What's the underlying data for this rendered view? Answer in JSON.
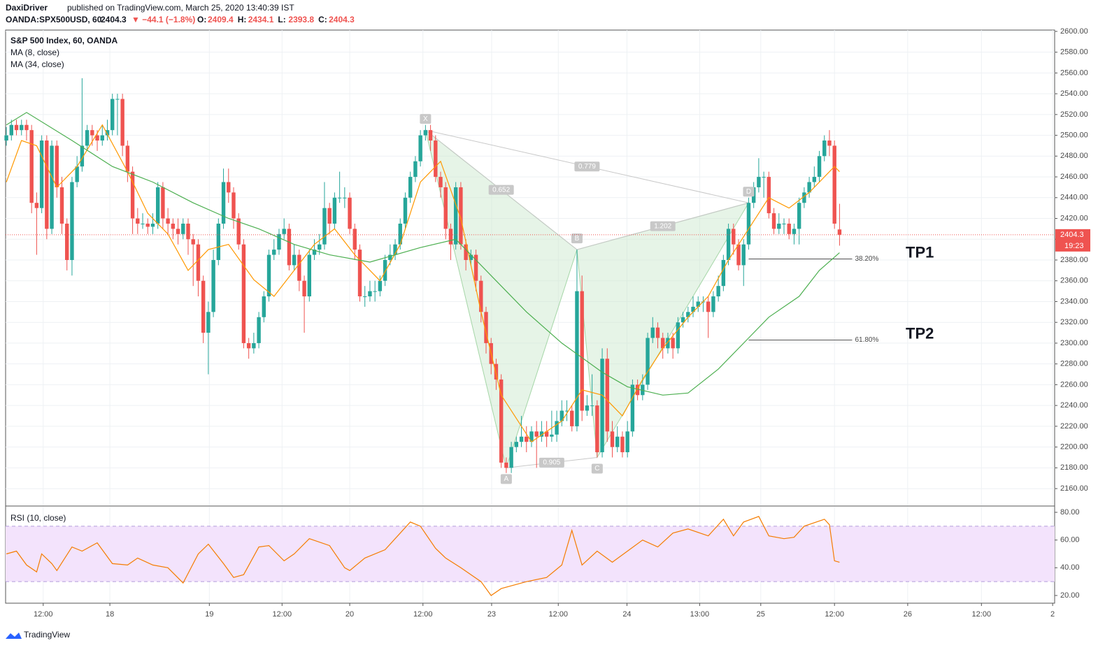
{
  "header": {
    "author": "DaxiDriver",
    "published": "published on TradingView.com, March 25, 2020 13:40:39 IST",
    "symbol": "OANDA:SPX500USD, 60",
    "change": "▼ −44.1 (−1.8%)",
    "ohlc_labels": [
      "O:",
      "H:",
      "L:",
      "C:"
    ]
  },
  "chart_data": {
    "type": "candlestick",
    "title": "S&P 500 Index, 60, OANDA",
    "up_color": "#26a69a",
    "down_color": "#ef5350",
    "grid": true,
    "open": [
      2495,
      2500,
      2510,
      2505,
      2510,
      2505,
      2435,
      2430,
      2495,
      2410,
      2490,
      2450,
      2415,
      2380,
      2455,
      2470,
      2490,
      2505,
      2500,
      2495,
      2500,
      2505,
      2535,
      2535,
      2490,
      2465,
      2420,
      2415,
      2415,
      2412,
      2415,
      2450,
      2420,
      2415,
      2410,
      2405,
      2415,
      2400,
      2395,
      2360,
      2310,
      2330,
      2380,
      2415,
      2455,
      2445,
      2420,
      2395,
      2300,
      2295,
      2300,
      2325,
      2345,
      2385,
      2390,
      2405,
      2410,
      2375,
      2385,
      2360,
      2345,
      2385,
      2390,
      2395,
      2430,
      2415,
      2440,
      2440,
      2440,
      2410,
      2390,
      2345,
      2345,
      2350,
      2350,
      2360,
      2380,
      2385,
      2395,
      2415,
      2440,
      2460,
      2475,
      2500,
      2505,
      2495,
      2460,
      2450,
      2410,
      2395,
      2450,
      2395,
      2380,
      2385,
      2360,
      2330,
      2300,
      2280,
      2265,
      2185,
      2180,
      2200,
      2205,
      2210,
      2205,
      2215,
      2210,
      2215,
      2210,
      2212,
      2225,
      2235,
      2235,
      2220,
      2350,
      2235,
      2240,
      2240,
      2195,
      2285,
      2215,
      2200,
      2210,
      2195,
      2215,
      2260,
      2250,
      2260,
      2305,
      2315,
      2305,
      2295,
      2305,
      2295,
      2320,
      2325,
      2330,
      2335,
      2340,
      2340,
      2330,
      2345,
      2355,
      2380,
      2410,
      2395,
      2375,
      2395,
      2435,
      2450,
      2460,
      2460,
      2425,
      2410,
      2415,
      2415,
      2405,
      2410,
      2435,
      2445,
      2455,
      2460,
      2480,
      2495,
      2490,
      2409.4
    ],
    "high": [
      2508,
      2515,
      2515,
      2515,
      2515,
      2510,
      2445,
      2500,
      2500,
      2495,
      2495,
      2460,
      2420,
      2460,
      2480,
      2555,
      2510,
      2510,
      2505,
      2510,
      2515,
      2540,
      2540,
      2540,
      2495,
      2470,
      2430,
      2425,
      2420,
      2425,
      2455,
      2455,
      2430,
      2420,
      2420,
      2420,
      2420,
      2405,
      2400,
      2365,
      2340,
      2390,
      2420,
      2468,
      2468,
      2450,
      2425,
      2400,
      2305,
      2310,
      2330,
      2350,
      2390,
      2400,
      2410,
      2420,
      2415,
      2395,
      2390,
      2365,
      2390,
      2400,
      2405,
      2455,
      2435,
      2445,
      2465,
      2450,
      2445,
      2415,
      2395,
      2355,
      2360,
      2360,
      2365,
      2385,
      2395,
      2400,
      2420,
      2445,
      2465,
      2480,
      2505,
      2510,
      2510,
      2500,
      2465,
      2455,
      2415,
      2455,
      2455,
      2400,
      2390,
      2390,
      2365,
      2335,
      2305,
      2285,
      2270,
      2190,
      2205,
      2210,
      2230,
      2220,
      2220,
      2225,
      2225,
      2225,
      2235,
      2235,
      2245,
      2245,
      2240,
      2390,
      2365,
      2250,
      2270,
      2245,
      2295,
      2295,
      2225,
      2220,
      2215,
      2225,
      2265,
      2265,
      2270,
      2310,
      2325,
      2320,
      2310,
      2310,
      2310,
      2325,
      2330,
      2335,
      2345,
      2345,
      2345,
      2345,
      2350,
      2365,
      2385,
      2415,
      2415,
      2400,
      2400,
      2440,
      2455,
      2478,
      2465,
      2465,
      2430,
      2425,
      2420,
      2420,
      2415,
      2440,
      2450,
      2460,
      2470,
      2485,
      2500,
      2505,
      2495,
      2434.1
    ],
    "low": [
      2490,
      2495,
      2500,
      2500,
      2495,
      2425,
      2385,
      2425,
      2400,
      2405,
      2440,
      2405,
      2370,
      2365,
      2450,
      2465,
      2485,
      2490,
      2485,
      2490,
      2495,
      2500,
      2500,
      2480,
      2455,
      2405,
      2405,
      2410,
      2405,
      2405,
      2410,
      2410,
      2405,
      2400,
      2395,
      2400,
      2385,
      2355,
      2345,
      2300,
      2270,
      2325,
      2375,
      2410,
      2435,
      2410,
      2390,
      2295,
      2285,
      2290,
      2295,
      2320,
      2340,
      2380,
      2385,
      2400,
      2370,
      2370,
      2350,
      2310,
      2340,
      2380,
      2385,
      2390,
      2405,
      2410,
      2435,
      2430,
      2405,
      2380,
      2340,
      2335,
      2340,
      2340,
      2345,
      2355,
      2375,
      2380,
      2390,
      2410,
      2435,
      2455,
      2470,
      2495,
      2485,
      2455,
      2440,
      2400,
      2380,
      2390,
      2390,
      2370,
      2375,
      2350,
      2320,
      2290,
      2270,
      2255,
      2180,
      2175,
      2175,
      2195,
      2200,
      2195,
      2200,
      2180,
      2205,
      2200,
      2205,
      2205,
      2220,
      2225,
      2215,
      2215,
      2225,
      2230,
      2230,
      2190,
      2190,
      2205,
      2190,
      2195,
      2190,
      2190,
      2210,
      2245,
      2245,
      2255,
      2300,
      2295,
      2285,
      2290,
      2285,
      2290,
      2315,
      2320,
      2325,
      2330,
      2330,
      2305,
      2325,
      2340,
      2350,
      2375,
      2385,
      2370,
      2355,
      2390,
      2430,
      2445,
      2440,
      2420,
      2405,
      2405,
      2405,
      2400,
      2395,
      2395,
      2430,
      2440,
      2450,
      2455,
      2475,
      2480,
      2410,
      2393.8
    ],
    "close": [
      2500,
      2510,
      2505,
      2510,
      2505,
      2435,
      2430,
      2495,
      2410,
      2490,
      2450,
      2415,
      2380,
      2455,
      2470,
      2490,
      2505,
      2500,
      2495,
      2500,
      2505,
      2535,
      2535,
      2490,
      2465,
      2420,
      2415,
      2415,
      2412,
      2415,
      2450,
      2420,
      2415,
      2410,
      2405,
      2415,
      2400,
      2395,
      2360,
      2310,
      2330,
      2380,
      2415,
      2455,
      2445,
      2420,
      2395,
      2300,
      2295,
      2300,
      2325,
      2345,
      2385,
      2390,
      2405,
      2410,
      2375,
      2385,
      2360,
      2345,
      2385,
      2390,
      2395,
      2430,
      2415,
      2440,
      2440,
      2440,
      2410,
      2390,
      2345,
      2345,
      2350,
      2350,
      2360,
      2380,
      2385,
      2395,
      2415,
      2440,
      2460,
      2475,
      2500,
      2505,
      2495,
      2460,
      2450,
      2410,
      2395,
      2450,
      2395,
      2380,
      2385,
      2360,
      2330,
      2300,
      2280,
      2265,
      2185,
      2180,
      2200,
      2205,
      2210,
      2205,
      2215,
      2210,
      2215,
      2210,
      2212,
      2225,
      2235,
      2235,
      2220,
      2350,
      2235,
      2240,
      2240,
      2195,
      2285,
      2215,
      2200,
      2210,
      2195,
      2215,
      2260,
      2250,
      2260,
      2305,
      2315,
      2305,
      2295,
      2305,
      2295,
      2320,
      2325,
      2330,
      2335,
      2340,
      2340,
      2330,
      2345,
      2355,
      2380,
      2410,
      2395,
      2375,
      2395,
      2435,
      2450,
      2460,
      2460,
      2425,
      2410,
      2415,
      2415,
      2405,
      2410,
      2435,
      2445,
      2455,
      2460,
      2480,
      2495,
      2490,
      2415,
      2404.3
    ],
    "last_time": "19:23",
    "series": [
      {
        "name": "MA (8, close)",
        "color": "#ff9800",
        "x": [
          0,
          3,
          6,
          10,
          14,
          19,
          24,
          28,
          32,
          36,
          40,
          44,
          49,
          53,
          57,
          61,
          65,
          69,
          74,
          78,
          82,
          86,
          90,
          94,
          98,
          104,
          110,
          114,
          118,
          122,
          126,
          130,
          135,
          139,
          143,
          147,
          151,
          155,
          159,
          164,
          165
        ],
        "values": [
          2455,
          2495,
          2490,
          2450,
          2470,
          2510,
          2465,
          2425,
          2405,
          2370,
          2390,
          2395,
          2361,
          2345,
          2370,
          2395,
          2410,
          2385,
          2360,
          2395,
          2455,
          2475,
          2420,
          2330,
          2250,
          2205,
          2225,
          2255,
          2250,
          2230,
          2265,
          2295,
          2325,
          2345,
          2380,
          2410,
          2440,
          2430,
          2445,
          2470,
          2465
        ]
      },
      {
        "name": "MA (34, close)",
        "color": "#4caf50",
        "x": [
          0,
          4,
          13,
          21,
          29,
          37,
          44,
          50,
          57,
          64,
          72,
          82,
          89,
          96,
          103,
          110,
          118,
          123,
          130,
          135,
          141,
          147,
          151,
          157,
          161,
          165
        ],
        "values": [
          2510,
          2522,
          2495,
          2470,
          2455,
          2435,
          2420,
          2410,
          2395,
          2385,
          2378,
          2392,
          2400,
          2365,
          2330,
          2300,
          2272,
          2258,
          2250,
          2252,
          2275,
          2305,
          2325,
          2345,
          2370,
          2387
        ]
      }
    ],
    "xlim": [
      -0.15,
      207.6
    ],
    "xticks": [
      {
        "value": 7.3,
        "label": "12:00"
      },
      {
        "value": 20.5,
        "label": "18"
      },
      {
        "value": 40.2,
        "label": "19"
      },
      {
        "value": 54.6,
        "label": "12:00"
      },
      {
        "value": 68,
        "label": "20"
      },
      {
        "value": 82.5,
        "label": "12:00"
      },
      {
        "value": 96.1,
        "label": "23"
      },
      {
        "value": 109.3,
        "label": "12:00"
      },
      {
        "value": 122.9,
        "label": "24"
      },
      {
        "value": 137.3,
        "label": "13:00"
      },
      {
        "value": 149.4,
        "label": "25"
      },
      {
        "value": 164,
        "label": "12:00"
      },
      {
        "value": 178.5,
        "label": "26"
      },
      {
        "value": 193.1,
        "label": "12:00"
      },
      {
        "value": 207.2,
        "label": "2"
      }
    ],
    "ylim": [
      2143.9,
      2601.3
    ],
    "yticks": [
      {
        "value": 2160,
        "label": "2160.00"
      },
      {
        "value": 2180,
        "label": "2180.00"
      },
      {
        "value": 2200,
        "label": "2200.00"
      },
      {
        "value": 2220,
        "label": "2220.00"
      },
      {
        "value": 2240,
        "label": "2240.00"
      },
      {
        "value": 2260,
        "label": "2260.00"
      },
      {
        "value": 2280,
        "label": "2280.00"
      },
      {
        "value": 2300,
        "label": "2300.00"
      },
      {
        "value": 2320,
        "label": "2320.00"
      },
      {
        "value": 2340,
        "label": "2340.00"
      },
      {
        "value": 2360,
        "label": "2360.00"
      },
      {
        "value": 2380,
        "label": "2380.00"
      },
      {
        "value": 2400,
        "label": "2400.00"
      },
      {
        "value": 2420,
        "label": "2420.00"
      },
      {
        "value": 2440,
        "label": "2440.00"
      },
      {
        "value": 2460,
        "label": "2460.00"
      },
      {
        "value": 2480,
        "label": "2480.00"
      },
      {
        "value": 2500,
        "label": "2500.00"
      },
      {
        "value": 2520,
        "label": "2520.00"
      },
      {
        "value": 2540,
        "label": "2540.00"
      },
      {
        "value": 2560,
        "label": "2560.00"
      },
      {
        "value": 2580,
        "label": "2580.00"
      },
      {
        "value": 2600,
        "label": "2600.00"
      }
    ],
    "pattern": {
      "points": [
        {
          "label": "X",
          "x": 83,
          "y": 2505
        },
        {
          "label": "A",
          "x": 99,
          "y": 2180
        },
        {
          "label": "B",
          "x": 113,
          "y": 2390
        },
        {
          "label": "C",
          "x": 117,
          "y": 2190
        },
        {
          "label": "D",
          "x": 147,
          "y": 2435
        }
      ],
      "ratios": [
        "0.652",
        "0.779",
        "1.202",
        "0.905"
      ]
    },
    "levels": [
      {
        "label": "38.20%",
        "value": 2381,
        "x": [
          147,
          167.5
        ]
      },
      {
        "label": "61.80%",
        "value": 2303,
        "x": [
          147,
          167.5
        ]
      }
    ],
    "annotations": [
      "TP1",
      "TP2"
    ],
    "rsi": {
      "name": "RSI (10, close)",
      "color": "#f57c00",
      "band_color": "#f3e3fc",
      "bands": [
        30,
        70
      ],
      "ylim": [
        14.95,
        84.03
      ],
      "yticks": [
        {
          "value": 20,
          "label": "20.00"
        },
        {
          "value": 40,
          "label": "40.00"
        },
        {
          "value": 60,
          "label": "60.00"
        },
        {
          "value": 80,
          "label": "80.00"
        }
      ],
      "x": [
        0,
        2,
        4,
        6,
        7,
        9,
        10,
        13,
        15,
        18,
        21,
        24,
        26,
        29,
        32,
        35,
        38,
        40,
        43,
        45,
        47,
        50,
        52,
        55,
        57,
        60,
        64,
        67,
        68,
        71,
        75,
        78,
        80,
        82,
        85,
        87,
        90,
        94,
        96,
        98,
        103,
        107,
        110,
        112,
        114,
        117,
        120,
        123,
        126,
        129,
        132,
        135,
        139,
        142,
        144,
        146,
        149,
        151,
        154,
        156,
        158,
        162,
        163,
        164,
        165
      ],
      "values": [
        50,
        52,
        42,
        37,
        50,
        43,
        38,
        55,
        52,
        58,
        43,
        42,
        47,
        42,
        40,
        29,
        50,
        57,
        43,
        33,
        35,
        55,
        56,
        45,
        50,
        61,
        56,
        40,
        38,
        47,
        53,
        65,
        73,
        70,
        54,
        47,
        40,
        30,
        20,
        25,
        30,
        33,
        42,
        67,
        42,
        52,
        44,
        52,
        60,
        55,
        65,
        68,
        63,
        75,
        63,
        73,
        77,
        63,
        61,
        62,
        70,
        75,
        71,
        45,
        44
      ]
    }
  },
  "footer": "TradingView"
}
